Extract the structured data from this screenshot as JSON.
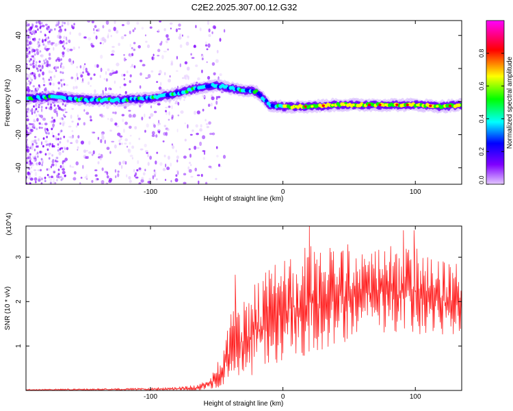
{
  "title": "C2E2.2025.307.00.12.G32",
  "chart_data": [
    {
      "type": "heatmap",
      "xlabel": "Height of straight line (km)",
      "ylabel": "Frequency (Hz)",
      "xlim": [
        -194,
        135
      ],
      "ylim": [
        -50,
        49
      ],
      "xticks": [
        -100,
        0,
        100
      ],
      "yticks": [
        -40,
        -20,
        0,
        20,
        40
      ],
      "grid": false,
      "ridge": {
        "description": "Dominant frequency track (Hz) along height (km)",
        "x": [
          -194,
          -170,
          -150,
          -120,
          -100,
          -80,
          -60,
          -50,
          -40,
          -30,
          -20,
          -10,
          0,
          20,
          40,
          60,
          80,
          100,
          120,
          135
        ],
        "y": [
          2,
          3,
          1,
          1,
          2,
          5,
          9,
          10,
          8,
          7,
          6,
          -2,
          -3,
          -3,
          -2,
          -2,
          -2,
          -2,
          -3,
          -2
        ]
      },
      "colorbar": {
        "label": "Normalized spectral amplitude",
        "ticks": [
          0.0,
          0.2,
          0.4,
          0.6,
          0.8
        ],
        "tick_labels": [
          "0.0",
          "0.2",
          "0.4",
          "0.6",
          "0.8"
        ],
        "range": [
          0,
          1
        ],
        "colormap": [
          "#e3c8ff",
          "#8000ff",
          "#0000ff",
          "#00ffff",
          "#00ff00",
          "#ffff00",
          "#ff0000",
          "#ff00ff"
        ]
      }
    },
    {
      "type": "line",
      "xlabel": "Height of straight line (km)",
      "ylabel": "SNR (10 * v/v)",
      "y_multiplier_label": "(x10^4)",
      "xlim": [
        -194,
        135
      ],
      "ylim": [
        0,
        3.7
      ],
      "xticks": [
        -100,
        0,
        100
      ],
      "yticks": [
        1,
        2,
        3
      ],
      "grid": false,
      "series": [
        {
          "name": "SNR",
          "color": "#ff2020",
          "envelope_x": [
            -194,
            -120,
            -80,
            -65,
            -55,
            -45,
            -40,
            -35,
            -30,
            -20,
            -10,
            0,
            10,
            20,
            30,
            50,
            70,
            90,
            100,
            110,
            120,
            135
          ],
          "envelope_low": [
            0.0,
            0.0,
            0.0,
            0.0,
            0.02,
            0.1,
            0.15,
            0.1,
            0.2,
            0.3,
            0.5,
            0.6,
            0.7,
            0.8,
            0.9,
            1.1,
            1.2,
            1.3,
            1.3,
            1.2,
            1.2,
            1.2
          ],
          "envelope_high": [
            0.03,
            0.05,
            0.08,
            0.12,
            0.3,
            0.9,
            1.8,
            2.0,
            2.2,
            2.5,
            2.8,
            3.0,
            3.1,
            3.3,
            3.2,
            3.3,
            3.3,
            3.2,
            3.3,
            3.0,
            2.9,
            2.9
          ],
          "peaks": [
            {
              "x": -36,
              "y": 2.6
            },
            {
              "x": 20,
              "y": 3.7
            },
            {
              "x": 44,
              "y": 3.1
            },
            {
              "x": 91,
              "y": 3.6
            },
            {
              "x": 99,
              "y": 3.6
            }
          ]
        }
      ]
    }
  ]
}
